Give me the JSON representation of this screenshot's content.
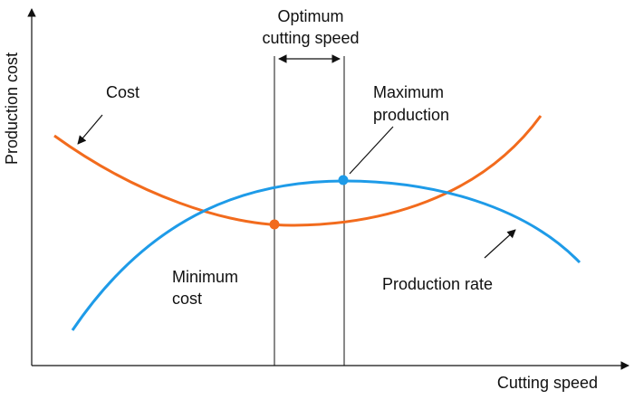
{
  "axes": {
    "y_label": "Production cost",
    "x_label": "Cutting speed"
  },
  "annotations": {
    "optimum": [
      "Optimum",
      "cutting speed"
    ],
    "cost": "Cost",
    "maximum_production": [
      "Maximum",
      "production"
    ],
    "minimum_cost": [
      "Minimum",
      "cost"
    ],
    "production_rate": "Production rate"
  }
}
